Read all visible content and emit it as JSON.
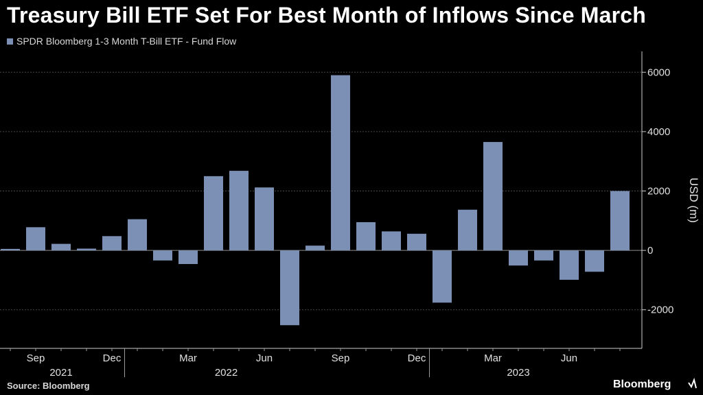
{
  "title": "Treasury Bill ETF Set For Best Month of Inflows Since March",
  "source": "Source: Bloomberg",
  "brand": "Bloomberg",
  "colors": {
    "bar": "#7b90b4",
    "grid": "#4a4a4a",
    "background": "#000000"
  },
  "chart_data": {
    "type": "bar",
    "title": "Treasury Bill ETF Set For Best Month of Inflows Since March",
    "series": [
      {
        "name": "SPDR Bloomberg 1-3 Month T-Bill ETF - Fund Flow",
        "values": [
          50,
          780,
          220,
          60,
          480,
          1050,
          -340,
          -460,
          2500,
          2680,
          2120,
          -2520,
          160,
          5900,
          950,
          640,
          560,
          -1760,
          1370,
          3650,
          -510,
          -340,
          -990,
          -720,
          2000
        ]
      }
    ],
    "categories": [
      "2021-08",
      "2021-09",
      "2021-10",
      "2021-11",
      "2021-12",
      "2022-01",
      "2022-02",
      "2022-03",
      "2022-04",
      "2022-05",
      "2022-06",
      "2022-07",
      "2022-08",
      "2022-09",
      "2022-10",
      "2022-11",
      "2022-12",
      "2023-01",
      "2023-02",
      "2023-03",
      "2023-04",
      "2023-05",
      "2023-06",
      "2023-07",
      "2023-08"
    ],
    "ylabel": "USD (m)",
    "ylim": [
      -3300,
      6700
    ],
    "yticks": [
      6000,
      4000,
      2000,
      0,
      -2000
    ],
    "x_month_ticks": [
      {
        "label": "Sep",
        "index": 1
      },
      {
        "label": "Dec",
        "index": 4
      },
      {
        "label": "Mar",
        "index": 7
      },
      {
        "label": "Jun",
        "index": 10
      },
      {
        "label": "Sep",
        "index": 13
      },
      {
        "label": "Dec",
        "index": 16
      },
      {
        "label": "Mar",
        "index": 19
      },
      {
        "label": "Jun",
        "index": 22
      }
    ],
    "x_year_labels": [
      {
        "label": "2021",
        "center_index": 2
      },
      {
        "label": "2022",
        "center_index": 8.5
      },
      {
        "label": "2023",
        "center_index": 20
      }
    ],
    "x_year_separators": [
      4.5,
      16.5
    ],
    "grid": true,
    "legend": "top-left"
  }
}
